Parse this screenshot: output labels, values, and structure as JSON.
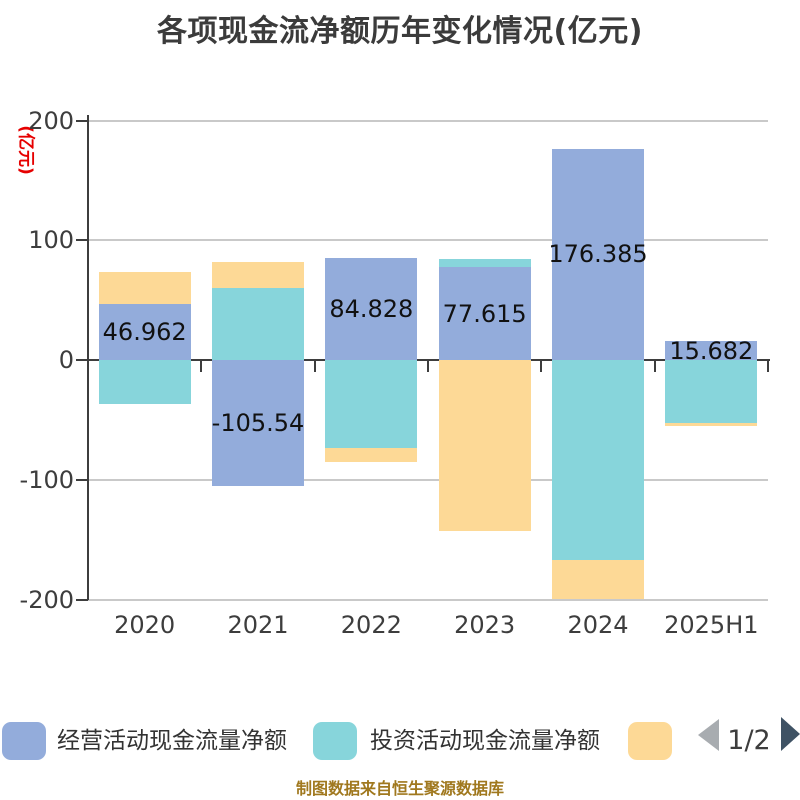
{
  "title": "各项现金流净额历年变化情况(亿元)",
  "y_axis": {
    "unit_label": "(亿元)",
    "unit_color": "#e60000",
    "tick_labels": [
      "200",
      "100",
      "0",
      "-100",
      "-200"
    ]
  },
  "chart_data": {
    "type": "bar",
    "stacked": true,
    "title": "各项现金流净额历年变化情况(亿元)",
    "categories": [
      "2020",
      "2021",
      "2022",
      "2023",
      "2024",
      "2025H1"
    ],
    "series": [
      {
        "name": "经营活动现金流量净额",
        "color": "#93acdb",
        "values": [
          46.962,
          -105.54,
          84.828,
          77.615,
          176.385,
          15.682
        ]
      },
      {
        "name": "投资活动现金流量净额",
        "color": "#87d5db",
        "values": [
          -36.5,
          60.0,
          -73.5,
          7.0,
          -166.7,
          -52.7
        ]
      },
      {
        "name": "",
        "color": "#fdd996",
        "values": [
          26.5,
          22.0,
          -11.8,
          -142.6,
          -33.0,
          -2.3
        ]
      }
    ],
    "data_labels": [
      "46.962",
      "-105.54",
      "84.828",
      "77.615",
      "176.385",
      "15.682"
    ],
    "data_label_series": 0,
    "ylim": [
      -200,
      200
    ],
    "yticks": [
      200,
      100,
      0,
      -100,
      -200
    ],
    "grid": true,
    "legend_position": "bottom"
  },
  "legend": {
    "items": [
      {
        "label": "经营活动现金流量净额",
        "color": "#93acdb"
      },
      {
        "label": "投资活动现金流量净额",
        "color": "#87d5db"
      },
      {
        "label": "",
        "color": "#fdd996"
      }
    ],
    "pagination": {
      "label": "1/2"
    }
  },
  "caption": "制图数据来自恒生聚源数据库"
}
